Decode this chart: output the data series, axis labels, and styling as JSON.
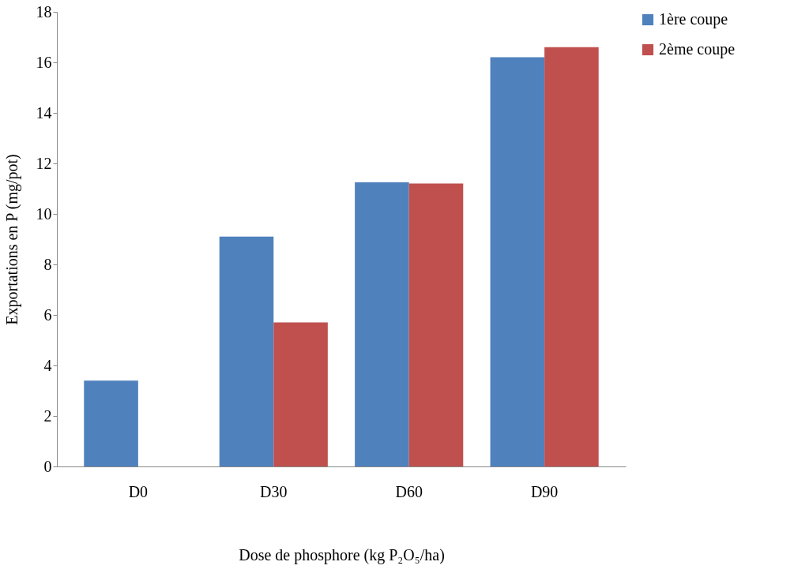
{
  "chart_data": {
    "type": "bar",
    "xlabel": "Dose de phosphore (kg P₂O₅/ha)",
    "ylabel": "Exportations en P (mg/pot)",
    "categories": [
      "D0",
      "D30",
      "D60",
      "D90"
    ],
    "series": [
      {
        "name": "1ère coupe",
        "color": "#4f81bd",
        "values": [
          3.4,
          9.1,
          11.25,
          16.2
        ]
      },
      {
        "name": "2ème coupe",
        "color": "#c0504d",
        "values": [
          0,
          5.7,
          11.2,
          16.6
        ]
      }
    ],
    "ylim": [
      0,
      18
    ],
    "yticks": [
      0,
      2,
      4,
      6,
      8,
      10,
      12,
      14,
      16,
      18
    ],
    "grid": false,
    "legend": "right"
  }
}
